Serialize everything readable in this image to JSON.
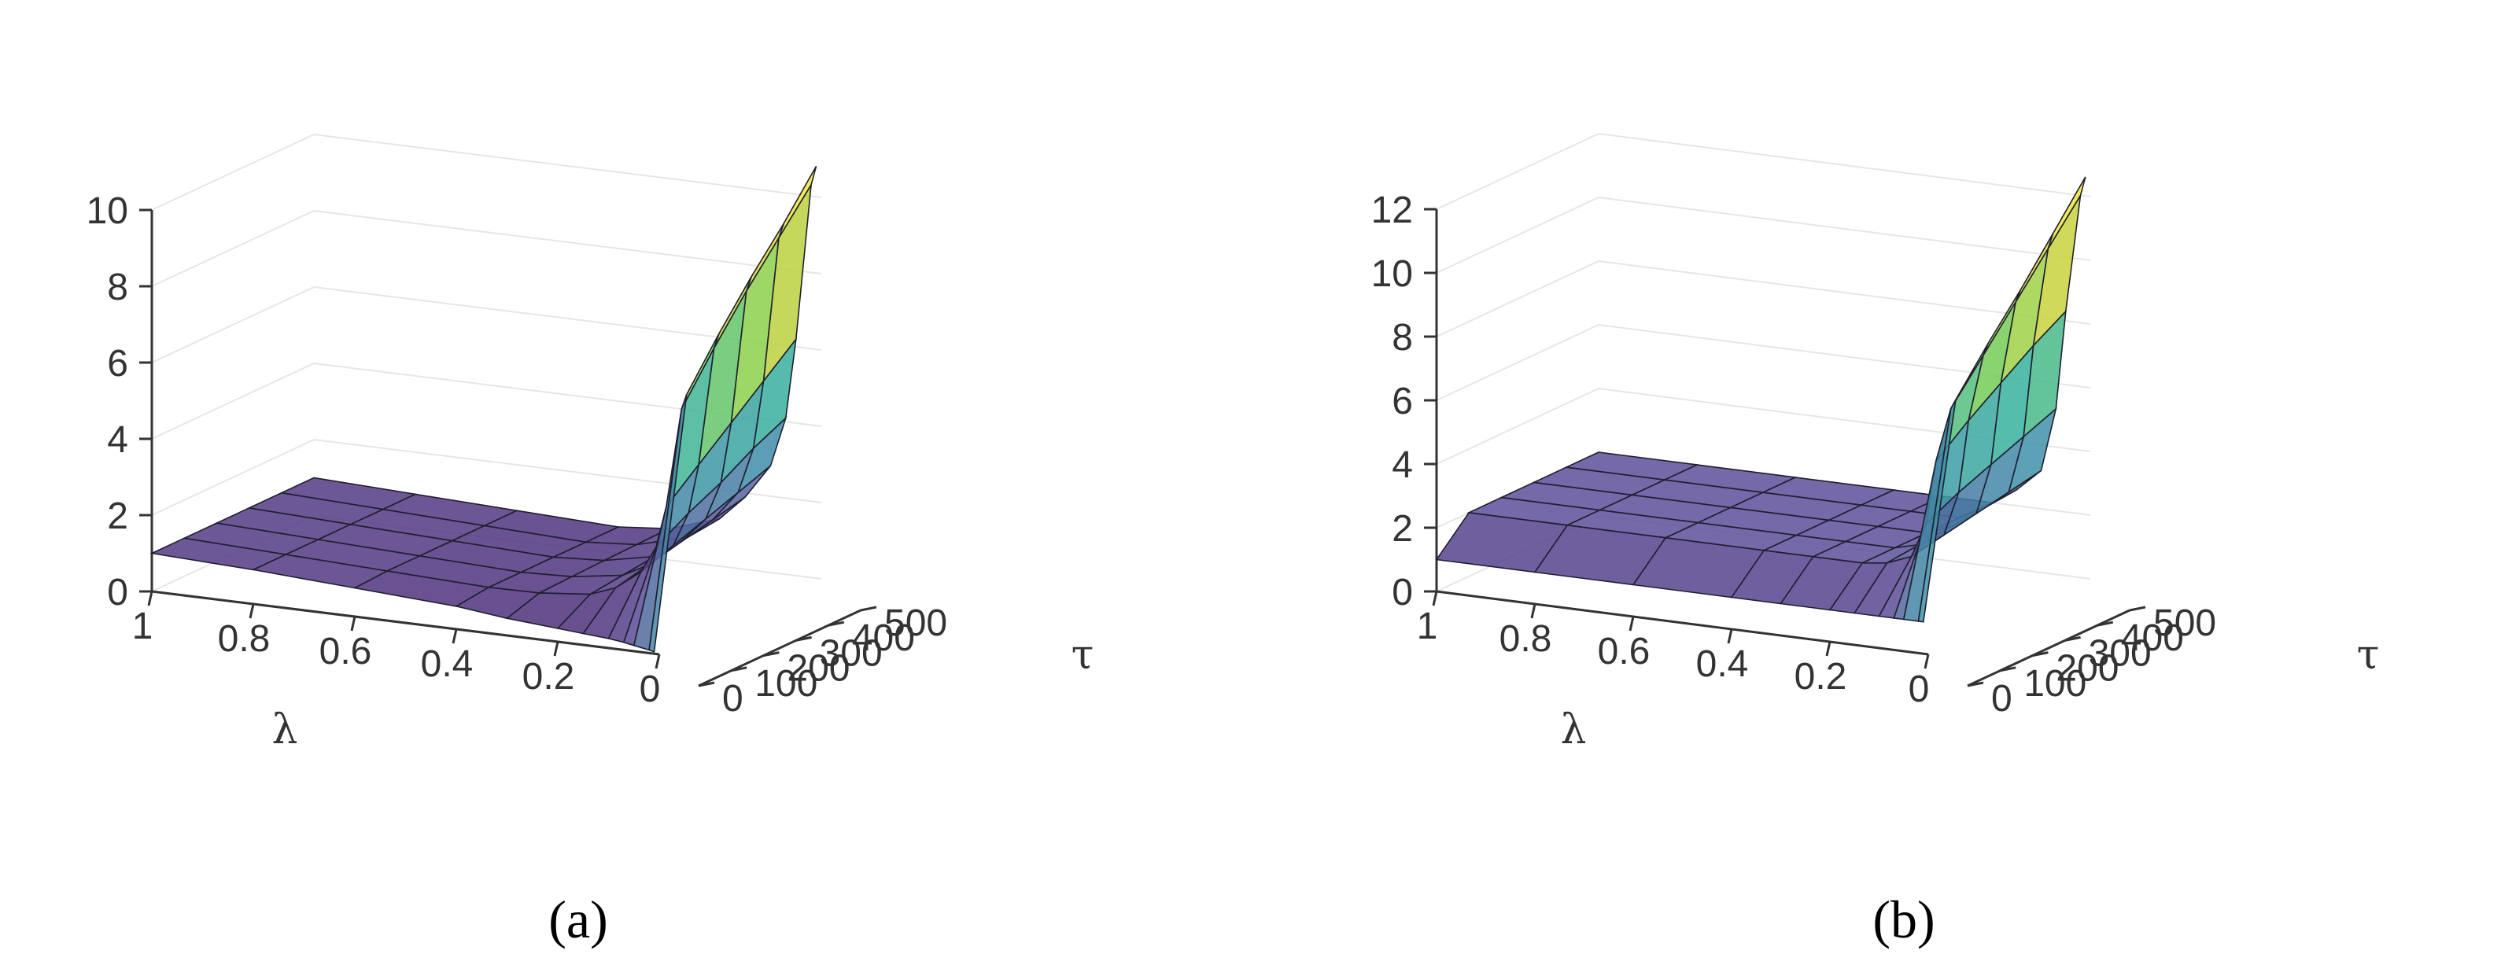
{
  "captions": [
    "(a)",
    "(b)"
  ],
  "chart_data": [
    {
      "type": "surface",
      "panel": "(a)",
      "xlabel": "λ",
      "ylabel": "τ",
      "zlabel": "",
      "xlim": [
        0,
        1
      ],
      "ylim": [
        0,
        500
      ],
      "zlim": [
        0,
        10
      ],
      "xticks": [
        "1",
        "0.8",
        "0.6",
        "0.4",
        "0.2",
        "0"
      ],
      "yticks": [
        "0",
        "100",
        "200",
        "300",
        "400",
        "500"
      ],
      "zticks": [
        "0",
        "2",
        "4",
        "6",
        "8",
        "10"
      ],
      "colormap": [
        "#46206a",
        "#5d4f9a",
        "#3f8fa8",
        "#37b29c",
        "#7bd04f",
        "#d7d23a",
        "#f2e73b"
      ],
      "lambda": [
        1,
        0.8,
        0.6,
        0.4,
        0.3,
        0.2,
        0.15,
        0.1,
        0.07,
        0.05,
        0.02,
        0.01
      ],
      "tau": [
        0,
        100,
        200,
        300,
        400,
        500
      ],
      "z": [
        [
          1,
          0.9,
          0.75,
          0.6,
          0.45,
          0.35,
          0.3,
          0.25,
          0.2,
          0.15,
          0.08,
          0.05
        ],
        [
          1,
          0.9,
          0.8,
          0.7,
          0.72,
          0.85,
          1.1,
          1.6,
          2.3,
          3.4,
          6.0,
          6.4
        ],
        [
          1,
          0.9,
          0.8,
          0.7,
          0.75,
          0.95,
          1.3,
          1.9,
          2.8,
          4.1,
          7.2,
          7.6
        ],
        [
          1,
          0.9,
          0.8,
          0.7,
          0.78,
          1.05,
          1.5,
          2.2,
          3.2,
          4.8,
          8.3,
          8.7
        ],
        [
          1,
          0.9,
          0.8,
          0.7,
          0.8,
          1.15,
          1.7,
          2.5,
          3.7,
          5.5,
          9.3,
          9.7
        ],
        [
          1,
          0.9,
          0.8,
          0.7,
          0.82,
          1.25,
          1.9,
          2.8,
          4.1,
          6.2,
          10.3,
          10.8
        ]
      ]
    },
    {
      "type": "surface",
      "panel": "(b)",
      "xlabel": "λ",
      "ylabel": "τ",
      "zlabel": "",
      "xlim": [
        0,
        1
      ],
      "ylim": [
        0,
        500
      ],
      "zlim": [
        0,
        12
      ],
      "xticks": [
        "1",
        "0.8",
        "0.6",
        "0.4",
        "0.2",
        "0"
      ],
      "yticks": [
        "0",
        "100",
        "200",
        "300",
        "400",
        "500"
      ],
      "zticks": [
        "0",
        "2",
        "4",
        "6",
        "8",
        "10",
        "12"
      ],
      "colormap": [
        "#46206a",
        "#5d4f9a",
        "#3f8fa8",
        "#37b29c",
        "#7bd04f",
        "#d7d23a",
        "#f2e73b"
      ],
      "lambda": [
        1,
        0.8,
        0.6,
        0.4,
        0.3,
        0.2,
        0.15,
        0.1,
        0.07,
        0.05,
        0.02,
        0.01
      ],
      "tau": [
        0,
        100,
        200,
        300,
        400,
        500
      ],
      "z": [
        [
          1,
          1,
          1,
          1,
          1,
          1,
          1,
          1,
          1,
          1,
          1,
          1
        ],
        [
          2,
          2,
          2,
          2,
          2,
          2,
          2.1,
          2.4,
          3.5,
          5.5,
          7.2,
          7.5
        ],
        [
          2,
          2,
          2,
          2,
          2,
          2,
          2.2,
          2.6,
          4.0,
          6.3,
          8.4,
          8.8
        ],
        [
          2,
          2,
          2,
          2,
          2,
          2,
          2.3,
          2.8,
          4.4,
          7.0,
          9.6,
          10.0
        ],
        [
          2,
          2,
          2,
          2,
          2,
          2,
          2.4,
          3.0,
          4.8,
          7.7,
          10.8,
          11.3
        ],
        [
          2,
          2,
          2,
          2,
          2,
          2,
          2.5,
          3.2,
          5.2,
          8.3,
          12.0,
          12.6
        ]
      ]
    }
  ]
}
